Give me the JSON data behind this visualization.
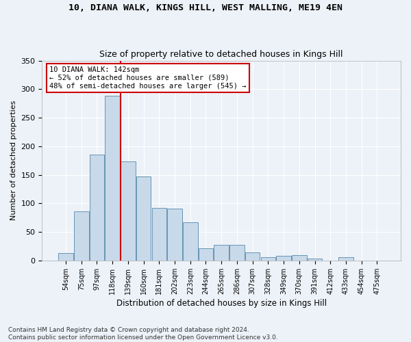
{
  "title": "10, DIANA WALK, KINGS HILL, WEST MALLING, ME19 4EN",
  "subtitle": "Size of property relative to detached houses in Kings Hill",
  "xlabel": "Distribution of detached houses by size in Kings Hill",
  "ylabel": "Number of detached properties",
  "bar_color": "#c8d9ea",
  "bar_edge_color": "#5588aa",
  "background_color": "#edf2f8",
  "grid_color": "#ffffff",
  "vline_color": "#cc0000",
  "annotation_text": "10 DIANA WALK: 142sqm\n← 52% of detached houses are smaller (589)\n48% of semi-detached houses are larger (545) →",
  "annotation_box_color": "#ffffff",
  "annotation_box_edge": "#cc0000",
  "categories": [
    "54sqm",
    "75sqm",
    "97sqm",
    "118sqm",
    "139sqm",
    "160sqm",
    "181sqm",
    "202sqm",
    "223sqm",
    "244sqm",
    "265sqm",
    "286sqm",
    "307sqm",
    "328sqm",
    "349sqm",
    "370sqm",
    "391sqm",
    "412sqm",
    "433sqm",
    "454sqm",
    "475sqm"
  ],
  "values": [
    13,
    86,
    185,
    289,
    174,
    147,
    92,
    91,
    67,
    22,
    28,
    27,
    14,
    6,
    8,
    9,
    3,
    0,
    6,
    0,
    0
  ],
  "ylim": [
    0,
    350
  ],
  "yticks": [
    0,
    50,
    100,
    150,
    200,
    250,
    300,
    350
  ],
  "footnote": "Contains HM Land Registry data © Crown copyright and database right 2024.\nContains public sector information licensed under the Open Government Licence v3.0.",
  "vline_bar_index": 4
}
